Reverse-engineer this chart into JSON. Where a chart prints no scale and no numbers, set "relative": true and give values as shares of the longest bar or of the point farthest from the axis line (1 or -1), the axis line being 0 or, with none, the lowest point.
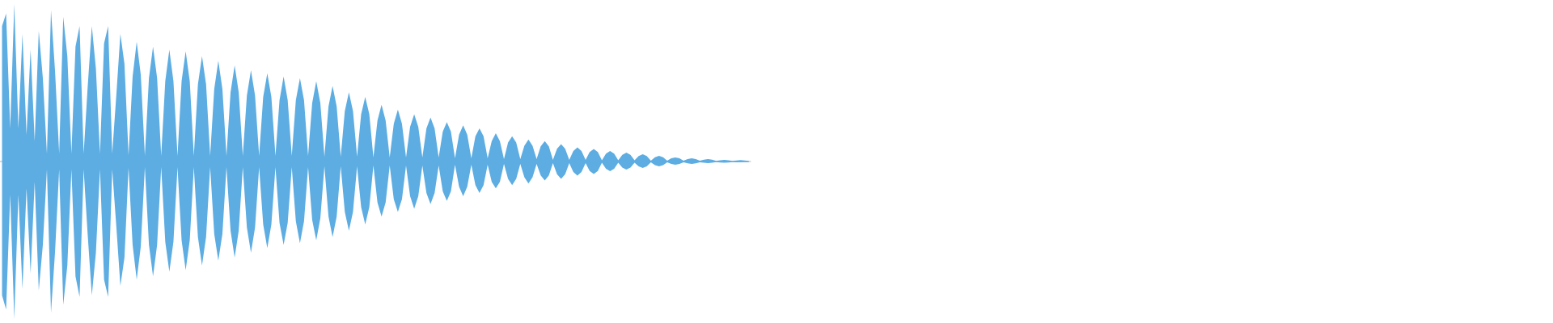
{
  "chart_data": {
    "type": "area",
    "relative": true,
    "categories": [
      null,
      null,
      null,
      null,
      null,
      null,
      null,
      null,
      null,
      null,
      null,
      null,
      null,
      null,
      null,
      null,
      null,
      null,
      null,
      null,
      null,
      null,
      null,
      null,
      null,
      null,
      null,
      null,
      null,
      null,
      null,
      null,
      null,
      null,
      null,
      null,
      null,
      null,
      null,
      null,
      null,
      null,
      null,
      null,
      null,
      null,
      null,
      null,
      null,
      null,
      null,
      null,
      null,
      null,
      null,
      null,
      null,
      null,
      null,
      null,
      null,
      null,
      null,
      null,
      null,
      null,
      null,
      null,
      null,
      null,
      null,
      null,
      null,
      null,
      null,
      null,
      null,
      null,
      null,
      null,
      null,
      null,
      null,
      null,
      null,
      null,
      null,
      null,
      null,
      null,
      null,
      null,
      null,
      null,
      null,
      null,
      null,
      null,
      null,
      null,
      null,
      null,
      null,
      null,
      null,
      null,
      null,
      null,
      null,
      null,
      null,
      null,
      null,
      null,
      null,
      null,
      null,
      null,
      null,
      null,
      null,
      null,
      null,
      null,
      null,
      null,
      null,
      null,
      null,
      null,
      null,
      null,
      null,
      null,
      null,
      null,
      null,
      null,
      null,
      null,
      null,
      null,
      null,
      null,
      null,
      null,
      null,
      null,
      null,
      null,
      null,
      null,
      null,
      null,
      null,
      null,
      null,
      null,
      null,
      null,
      null,
      null,
      null,
      null,
      null,
      null,
      null,
      null,
      null,
      null,
      null,
      null,
      null,
      null,
      null,
      null,
      null,
      null,
      null,
      null,
      null,
      null,
      null,
      null
    ],
    "series": [
      {
        "color": "#5dade2",
        "values": [
          0.86,
          0.94,
          0.21,
          1,
          0.21,
          0.81,
          0.17,
          0.71,
          0.13,
          0.83,
          0.53,
          0.05,
          0.96,
          0.57,
          0.05,
          0.92,
          0.67,
          0.05,
          0.73,
          0.86,
          0.05,
          0.48,
          0.86,
          0.59,
          0.05,
          0.75,
          0.86,
          0.05,
          0.42,
          0.81,
          0.62,
          0.04,
          0.54,
          0.76,
          0.55,
          0.036,
          0.53,
          0.73,
          0.53,
          0.036,
          0.51,
          0.71,
          0.51,
          0.036,
          0.51,
          0.7,
          0.51,
          0.036,
          0.49,
          0.67,
          0.49,
          0.036,
          0.46,
          0.64,
          0.46,
          0.036,
          0.44,
          0.61,
          0.44,
          0.036,
          0.42,
          0.58,
          0.42,
          0.036,
          0.41,
          0.56,
          0.41,
          0.036,
          0.39,
          0.54,
          0.39,
          0.036,
          0.39,
          0.53,
          0.39,
          0.036,
          0.37,
          0.51,
          0.37,
          0.031,
          0.35,
          0.48,
          0.35,
          0.031,
          0.32,
          0.44,
          0.32,
          0.031,
          0.3,
          0.41,
          0.3,
          0.026,
          0.26,
          0.36,
          0.26,
          0.026,
          0.24,
          0.33,
          0.24,
          0.026,
          0.22,
          0.3,
          0.22,
          0.026,
          0.21,
          0.28,
          0.21,
          0.026,
          0.19,
          0.25,
          0.19,
          0.021,
          0.17,
          0.23,
          0.17,
          0.021,
          0.16,
          0.21,
          0.16,
          0.021,
          0.13,
          0.18,
          0.13,
          0.015,
          0.12,
          0.16,
          0.12,
          0.015,
          0.1,
          0.14,
          0.1,
          0.015,
          0.096,
          0.13,
          0.096,
          0.01,
          0.081,
          0.11,
          0.081,
          0.01,
          0.067,
          0.09,
          0.067,
          0.01,
          0.06,
          0.08,
          0.06,
          0.008,
          0.05,
          0.067,
          0.05,
          0.008,
          0.042,
          0.056,
          0.042,
          0.008,
          0.035,
          0.046,
          0.035,
          0.005,
          0.027,
          0.036,
          0.027,
          0.005,
          0.02,
          0.026,
          0.02,
          0.005,
          0.016,
          0.021,
          0.016,
          0.005,
          0.012,
          0.015,
          0.012,
          0.004,
          0.008,
          0.01,
          0.008,
          0.004,
          0.007,
          0.009,
          0.006,
          0.004
        ]
      },
      {
        "color": "#5dade2",
        "values": [
          -0.85,
          -0.94,
          -0.21,
          -1,
          -0.21,
          -0.81,
          -0.17,
          -0.71,
          -0.13,
          -0.82,
          -0.53,
          -0.05,
          -0.96,
          -0.57,
          -0.05,
          -0.91,
          -0.66,
          -0.05,
          -0.73,
          -0.86,
          -0.05,
          -0.47,
          -0.85,
          -0.58,
          -0.05,
          -0.75,
          -0.86,
          -0.05,
          -0.41,
          -0.79,
          -0.61,
          -0.04,
          -0.53,
          -0.75,
          -0.54,
          -0.036,
          -0.53,
          -0.73,
          -0.53,
          -0.036,
          -0.51,
          -0.7,
          -0.51,
          -0.036,
          -0.5,
          -0.69,
          -0.5,
          -0.036,
          -0.48,
          -0.66,
          -0.48,
          -0.036,
          -0.46,
          -0.63,
          -0.46,
          -0.036,
          -0.44,
          -0.61,
          -0.44,
          -0.036,
          -0.42,
          -0.58,
          -0.42,
          -0.036,
          -0.4,
          -0.55,
          -0.4,
          -0.036,
          -0.39,
          -0.53,
          -0.39,
          -0.036,
          -0.38,
          -0.52,
          -0.38,
          -0.036,
          -0.37,
          -0.5,
          -0.36,
          -0.031,
          -0.35,
          -0.48,
          -0.35,
          -0.031,
          -0.32,
          -0.44,
          -0.32,
          -0.031,
          -0.29,
          -0.4,
          -0.29,
          -0.026,
          -0.26,
          -0.35,
          -0.26,
          -0.026,
          -0.24,
          -0.32,
          -0.24,
          -0.026,
          -0.22,
          -0.3,
          -0.22,
          -0.026,
          -0.2,
          -0.27,
          -0.2,
          -0.026,
          -0.19,
          -0.25,
          -0.19,
          -0.021,
          -0.16,
          -0.22,
          -0.16,
          -0.021,
          -0.15,
          -0.2,
          -0.15,
          -0.021,
          -0.13,
          -0.17,
          -0.13,
          -0.015,
          -0.11,
          -0.15,
          -0.11,
          -0.015,
          -0.1,
          -0.14,
          -0.1,
          -0.015,
          -0.089,
          -0.12,
          -0.089,
          -0.01,
          -0.081,
          -0.11,
          -0.081,
          -0.01,
          -0.067,
          -0.09,
          -0.067,
          -0.01,
          -0.06,
          -0.08,
          -0.06,
          -0.008,
          -0.046,
          -0.062,
          -0.046,
          -0.008,
          -0.038,
          -0.051,
          -0.038,
          -0.008,
          -0.031,
          -0.041,
          -0.031,
          -0.005,
          -0.023,
          -0.031,
          -0.023,
          -0.005,
          -0.016,
          -0.021,
          -0.016,
          -0.005,
          -0.012,
          -0.015,
          -0.012,
          -0.005,
          -0.008,
          -0.01,
          -0.008,
          -0.004,
          -0.007,
          -0.008,
          -0.007,
          -0.004,
          -0.005,
          -0.005,
          -0.004,
          -0.004
        ]
      }
    ]
  }
}
